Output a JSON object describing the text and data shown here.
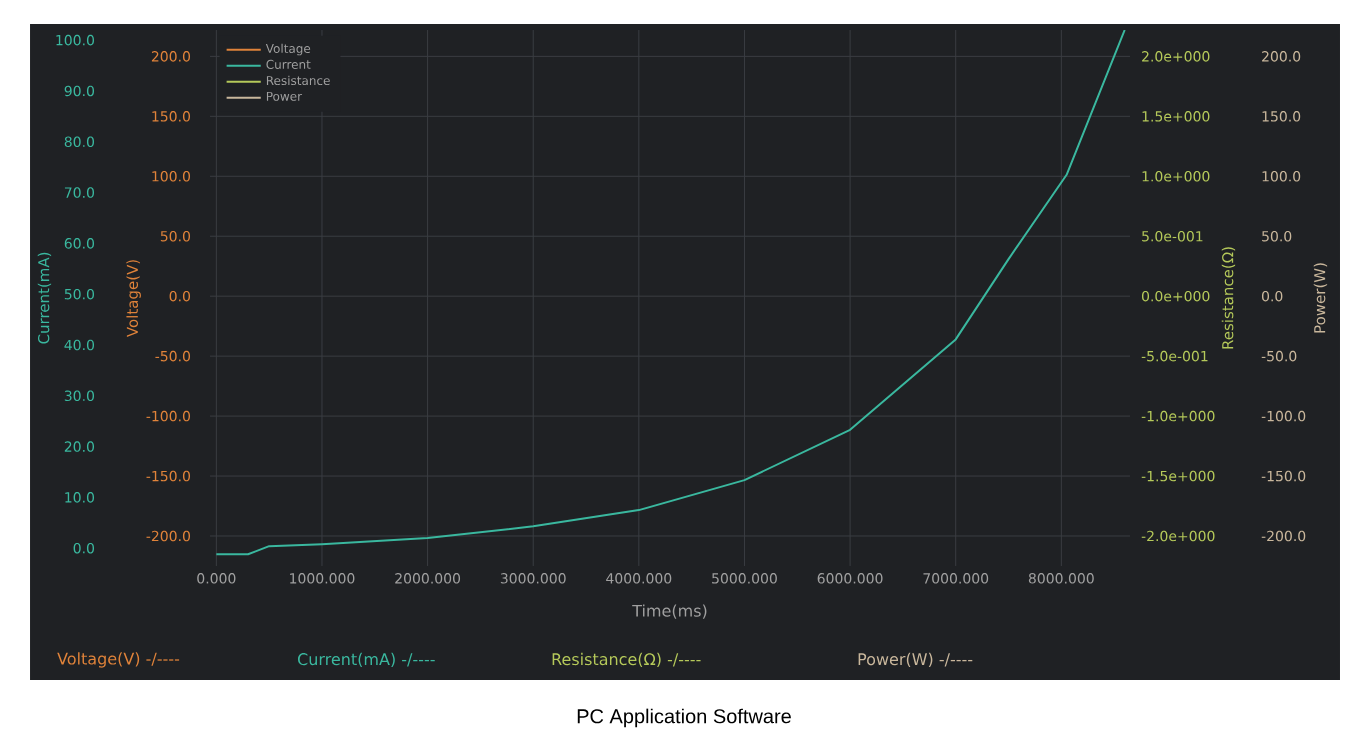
{
  "chart_data": {
    "type": "line",
    "xlabel": "Time(ms)",
    "ylabel": "Current(mA)",
    "y2label": "Voltage(V)",
    "y3label": "Resistance(Ω)",
    "x": [
      0,
      300,
      500,
      1000,
      2000,
      3000,
      4000,
      5000,
      6000,
      7000,
      7500,
      8050,
      8600
    ],
    "series": [
      {
        "name": "Voltage",
        "color": "#e0833a",
        "axis": "y2",
        "values": [
          null,
          null,
          null,
          null,
          null,
          null,
          null,
          null,
          null,
          null,
          null,
          null,
          null
        ]
      },
      {
        "name": "Current",
        "color": "#3ab89f",
        "values": [
          -1.2,
          -1.2,
          0.4,
          0.8,
          2.0,
          4.3,
          7.5,
          13.4,
          23.3,
          41.1,
          56.9,
          73.5,
          102
        ]
      },
      {
        "name": "Resistance",
        "color": "#b5c95a",
        "axis": "y3",
        "values": [
          null,
          null,
          null,
          null,
          null,
          null,
          null,
          null,
          null,
          null,
          null,
          null,
          null
        ]
      },
      {
        "name": "Power",
        "color": "#c9b79c",
        "axis": "y2",
        "values": [
          null,
          null,
          null,
          null,
          null,
          null,
          null,
          null,
          null,
          null,
          null,
          null,
          null
        ]
      }
    ],
    "xlim": [
      -60,
      8650
    ],
    "xticks": [
      {
        "value": 0,
        "label": "0.000"
      },
      {
        "value": 1000,
        "label": "1000.000"
      },
      {
        "value": 2000,
        "label": "2000.000"
      },
      {
        "value": 3000,
        "label": "3000.000"
      },
      {
        "value": 4000,
        "label": "4000.000"
      },
      {
        "value": 5000,
        "label": "5000.000"
      },
      {
        "value": 6000,
        "label": "6000.000"
      },
      {
        "value": 7000,
        "label": "7000.000"
      },
      {
        "value": 8000,
        "label": "8000.000"
      }
    ],
    "ylim": [
      -3.5,
      102
    ],
    "yticks": [
      {
        "value": 0,
        "label": "0.0"
      },
      {
        "value": 10,
        "label": "10.0"
      },
      {
        "value": 20,
        "label": "20.0"
      },
      {
        "value": 30,
        "label": "30.0"
      },
      {
        "value": 40,
        "label": "40.0"
      },
      {
        "value": 50,
        "label": "50.0"
      },
      {
        "value": 60,
        "label": "60.0"
      },
      {
        "value": 70,
        "label": "70.0"
      },
      {
        "value": 80,
        "label": "80.0"
      },
      {
        "value": 90,
        "label": "90.0"
      },
      {
        "value": 100,
        "label": "100.0"
      }
    ],
    "y2lim": [
      -225,
      222
    ],
    "y2ticks": [
      {
        "value": -200,
        "label": "-200.0"
      },
      {
        "value": -150,
        "label": "-150.0"
      },
      {
        "value": -100,
        "label": "-100.0"
      },
      {
        "value": -50,
        "label": "-50.0"
      },
      {
        "value": 0,
        "label": "0.0"
      },
      {
        "value": 50,
        "label": "50.0"
      },
      {
        "value": 100,
        "label": "100.0"
      },
      {
        "value": 150,
        "label": "150.0"
      },
      {
        "value": 200,
        "label": "200.0"
      }
    ],
    "y3lim": [
      -2.25,
      2.22
    ],
    "y3ticks": [
      {
        "value": -2,
        "label": "-2.0e+000"
      },
      {
        "value": -1.5,
        "label": "-1.5e+000"
      },
      {
        "value": -1,
        "label": "-1.0e+000"
      },
      {
        "value": -0.5,
        "label": "-5.0e-001"
      },
      {
        "value": 0,
        "label": "0.0e+000"
      },
      {
        "value": 0.5,
        "label": "5.0e-001"
      },
      {
        "value": 1,
        "label": "1.0e+000"
      },
      {
        "value": 1.5,
        "label": "1.5e+000"
      },
      {
        "value": 2,
        "label": "2.0e+000"
      }
    ],
    "grid": true,
    "legend": "top left",
    "annotations": [
      "Voltage(V) -/----",
      "Current(mA) -/----",
      "Resistance(Ω) -/----",
      "Power(W) -/----",
      "PC Application Software",
      "Power(W)"
    ]
  }
}
